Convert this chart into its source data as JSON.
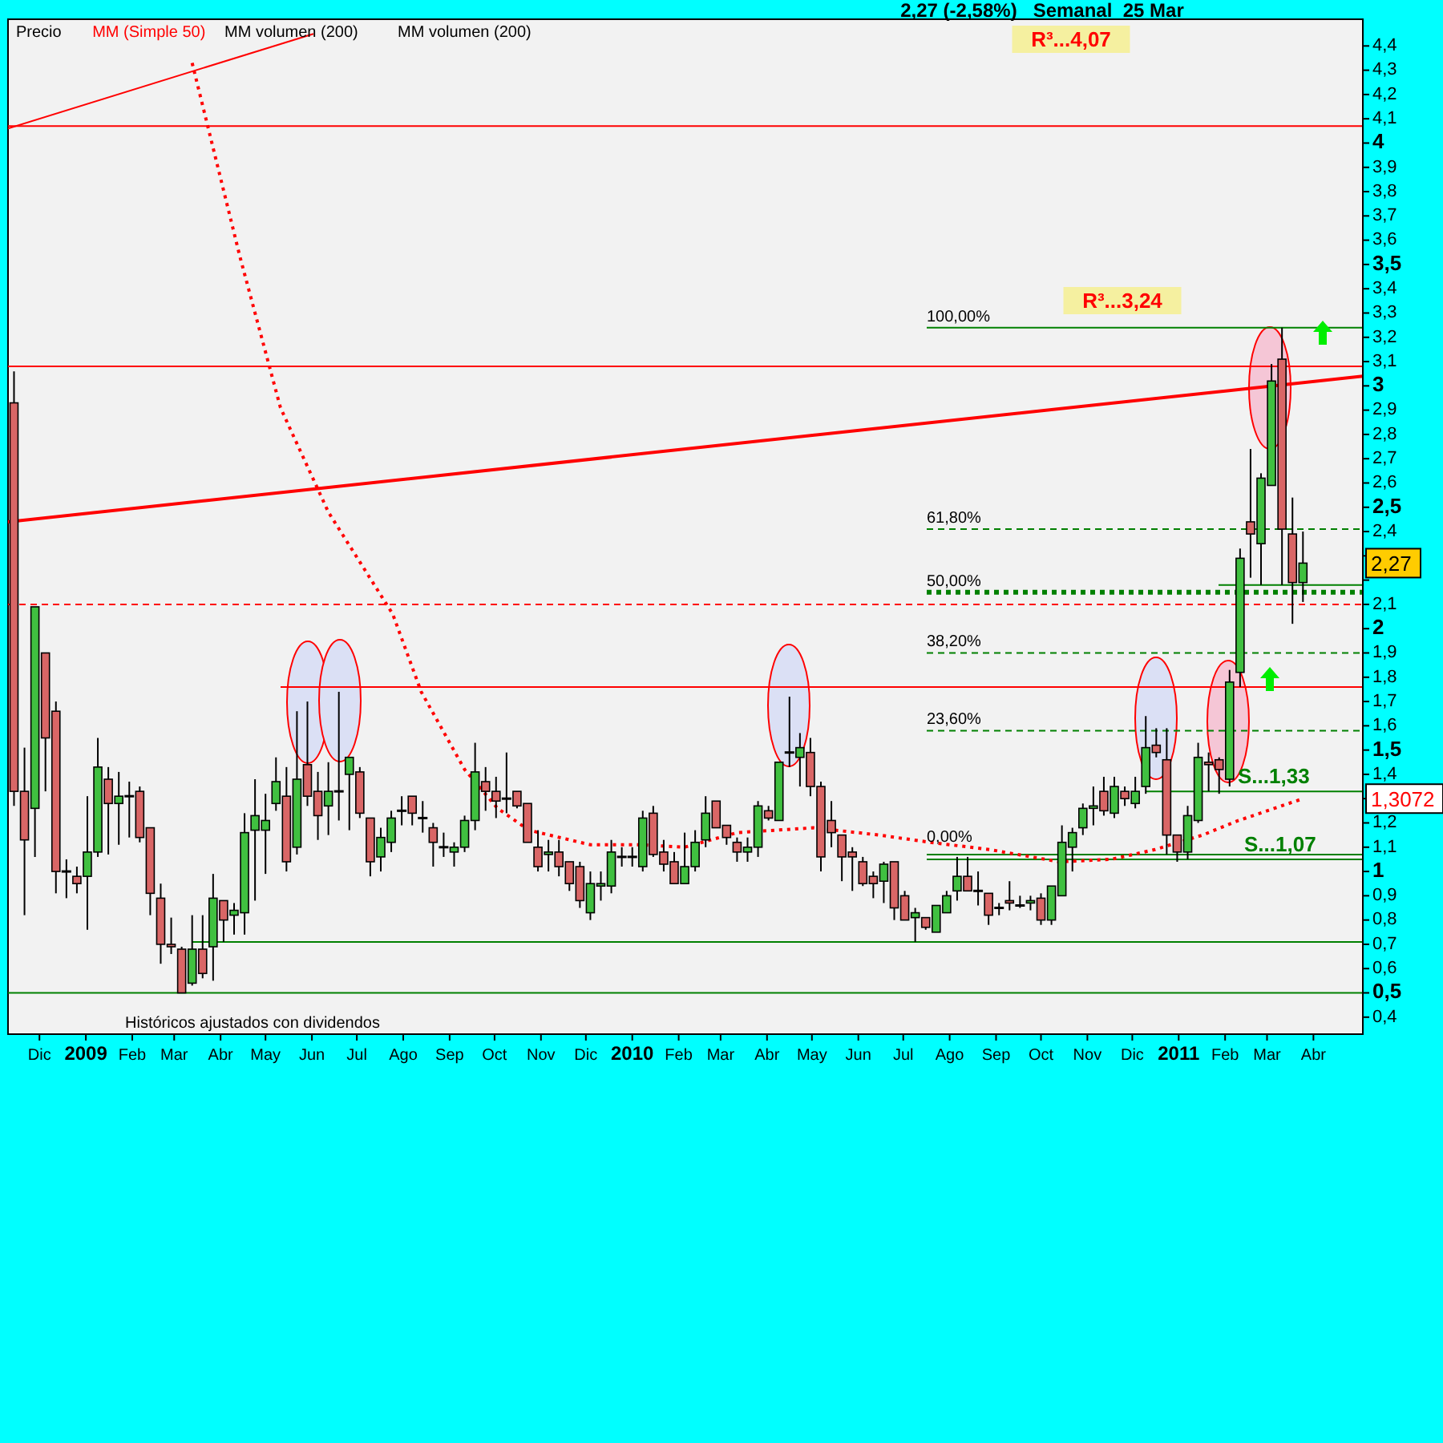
{
  "chart_data": {
    "type": "candlestick",
    "title": "2,27 (-2,58%)   Semanal  25 Mar",
    "xlim": [
      "2008-11-10",
      "2011-05-04"
    ],
    "ylim": [
      0.33,
      4.51
    ],
    "xticks": [
      {
        "value": "2008-12-01",
        "label": "Dic"
      },
      {
        "value": "2009-01-01",
        "label": "2009"
      },
      {
        "value": "2009-02-01",
        "label": "Feb"
      },
      {
        "value": "2009-03-01",
        "label": "Mar"
      },
      {
        "value": "2009-04-01",
        "label": "Abr"
      },
      {
        "value": "2009-05-01",
        "label": "May"
      },
      {
        "value": "2009-06-01",
        "label": "Jun"
      },
      {
        "value": "2009-07-01",
        "label": "Jul"
      },
      {
        "value": "2009-08-01",
        "label": "Ago"
      },
      {
        "value": "2009-09-01",
        "label": "Sep"
      },
      {
        "value": "2009-10-01",
        "label": "Oct"
      },
      {
        "value": "2009-11-01",
        "label": "Nov"
      },
      {
        "value": "2009-12-01",
        "label": "Dic"
      },
      {
        "value": "2010-01-01",
        "label": "2010"
      },
      {
        "value": "2010-02-01",
        "label": "Feb"
      },
      {
        "value": "2010-03-01",
        "label": "Mar"
      },
      {
        "value": "2010-04-01",
        "label": "Abr"
      },
      {
        "value": "2010-05-01",
        "label": "May"
      },
      {
        "value": "2010-06-01",
        "label": "Jun"
      },
      {
        "value": "2010-07-01",
        "label": "Jul"
      },
      {
        "value": "2010-08-01",
        "label": "Ago"
      },
      {
        "value": "2010-09-01",
        "label": "Sep"
      },
      {
        "value": "2010-10-01",
        "label": "Oct"
      },
      {
        "value": "2010-11-01",
        "label": "Nov"
      },
      {
        "value": "2010-12-01",
        "label": "Dic"
      },
      {
        "value": "2011-01-01",
        "label": "2011"
      },
      {
        "value": "2011-02-01",
        "label": "Feb"
      },
      {
        "value": "2011-03-01",
        "label": "Mar"
      },
      {
        "value": "2011-04-01",
        "label": "Abr"
      }
    ],
    "yticks": [
      {
        "value": 0.4,
        "label": "0,4"
      },
      {
        "value": 0.5,
        "label": "0,5"
      },
      {
        "value": 0.6,
        "label": "0,6"
      },
      {
        "value": 0.7,
        "label": "0,7"
      },
      {
        "value": 0.8,
        "label": "0,8"
      },
      {
        "value": 0.9,
        "label": "0,9"
      },
      1,
      {
        "value": 1.1,
        "label": "1,1"
      },
      {
        "value": 1.2,
        "label": "1,2"
      },
      {
        "value": 1.3,
        "label": null
      },
      {
        "value": 1.4,
        "label": "1,4"
      },
      {
        "value": 1.5,
        "label": "1,5"
      },
      {
        "value": 1.6,
        "label": "1,6"
      },
      {
        "value": 1.7,
        "label": "1,7"
      },
      {
        "value": 1.8,
        "label": "1,8"
      },
      {
        "value": 1.9,
        "label": "1,9"
      },
      2,
      {
        "value": 2.1,
        "label": "2,1"
      },
      {
        "value": 2.2,
        "label": null
      },
      {
        "value": 2.3,
        "label": null
      },
      {
        "value": 2.4,
        "label": "2,4"
      },
      {
        "value": 2.5,
        "label": "2,5"
      },
      {
        "value": 2.6,
        "label": "2,6"
      },
      {
        "value": 2.7,
        "label": "2,7"
      },
      {
        "value": 2.8,
        "label": "2,8"
      },
      {
        "value": 2.9,
        "label": "2,9"
      },
      3,
      {
        "value": 3.1,
        "label": "3,1"
      },
      {
        "value": 3.2,
        "label": "3,2"
      },
      {
        "value": 3.3,
        "label": "3,3"
      },
      {
        "value": 3.4,
        "label": "3,4"
      },
      {
        "value": 3.5,
        "label": "3,5"
      },
      {
        "value": 3.6,
        "label": "3,6"
      },
      {
        "value": 3.7,
        "label": "3,7"
      },
      {
        "value": 3.8,
        "label": "3,8"
      },
      {
        "value": 3.9,
        "label": "3,9"
      },
      4,
      {
        "value": 4.1,
        "label": "4,1"
      },
      {
        "value": 4.2,
        "label": "4,2"
      },
      {
        "value": 4.3,
        "label": "4,3"
      },
      {
        "value": 4.4,
        "label": "4,4"
      }
    ],
    "legend": "top left",
    "series": [
      {
        "name": "Precio",
        "colors": [
          "#d96666",
          "#d96666",
          "#40c040",
          "#d96666",
          "#d96666",
          "#000000",
          "#d96666",
          "#40c040",
          "#40c040",
          "#d96666",
          "#40c040",
          "#000000",
          "#d96666",
          "#d96666",
          "#d96666",
          "#d96666",
          "#d96666",
          "#40c040",
          "#d96666",
          "#40c040",
          "#d96666",
          "#40c040",
          "#40c040",
          "#40c040",
          "#40c040",
          "#40c040",
          "#d96666",
          "#40c040",
          "#d96666",
          "#d96666",
          "#40c040",
          "#000000",
          "#40c040",
          "#d96666",
          "#d96666",
          "#40c040",
          "#40c040",
          "#000000",
          "#d96666",
          "#000000",
          "#d96666",
          "#000000",
          "#40c040",
          "#40c040",
          "#40c040",
          "#d96666",
          "#d96666",
          "#000000",
          "#d96666",
          "#d96666",
          "#d96666",
          "#40c040",
          "#d96666",
          "#d96666",
          "#d96666",
          "#40c040",
          "#40c040",
          "#40c040",
          "#000000",
          "#000000",
          "#40c040",
          "#d96666",
          "#d96666",
          "#d96666",
          "#40c040",
          "#40c040",
          "#40c040",
          "#d96666",
          "#d96666",
          "#d96666",
          "#40c040",
          "#40c040",
          "#d96666",
          "#40c040",
          "#000000",
          "#40c040",
          "#d96666",
          "#d96666",
          "#d96666",
          "#d96666",
          "#d96666",
          "#d96666",
          "#d96666",
          "#40c040",
          "#d96666",
          "#d96666",
          "#40c040",
          "#d96666",
          "#40c040",
          "#40c040",
          "#40c040",
          "#d96666",
          "#000000",
          "#d96666",
          "#000000",
          "#d96666",
          "#000000",
          "#40c040",
          "#d96666",
          "#40c040",
          "#40c040",
          "#40c040",
          "#40c040",
          "#40c040",
          "#d96666",
          "#40c040",
          "#d96666",
          "#40c040",
          "#40c040",
          "#d96666",
          "#d96666",
          "#d96666",
          "#40c040",
          "#40c040",
          "#d96666",
          "#d96666",
          "#40c040",
          "#40c040",
          "#d96666",
          "#40c040",
          "#40c040",
          "#d96666",
          "#d96666",
          "#40c040"
        ],
        "x": [
          "2008-11-14",
          "2008-11-21",
          "2008-11-28",
          "2008-12-05",
          "2008-12-12",
          "2008-12-19",
          "2008-12-26",
          "2009-01-02",
          "2009-01-09",
          "2009-01-16",
          "2009-01-23",
          "2009-01-30",
          "2009-02-06",
          "2009-02-13",
          "2009-02-20",
          "2009-02-27",
          "2009-03-06",
          "2009-03-13",
          "2009-03-20",
          "2009-03-27",
          "2009-04-03",
          "2009-04-10",
          "2009-04-17",
          "2009-04-24",
          "2009-05-01",
          "2009-05-08",
          "2009-05-15",
          "2009-05-22",
          "2009-05-29",
          "2009-06-05",
          "2009-06-12",
          "2009-06-19",
          "2009-06-26",
          "2009-07-03",
          "2009-07-10",
          "2009-07-17",
          "2009-07-24",
          "2009-07-31",
          "2009-08-07",
          "2009-08-14",
          "2009-08-21",
          "2009-08-28",
          "2009-09-04",
          "2009-09-11",
          "2009-09-18",
          "2009-09-25",
          "2009-10-02",
          "2009-10-09",
          "2009-10-16",
          "2009-10-23",
          "2009-10-30",
          "2009-11-06",
          "2009-11-13",
          "2009-11-20",
          "2009-11-27",
          "2009-12-04",
          "2009-12-11",
          "2009-12-18",
          "2009-12-25",
          "2010-01-01",
          "2010-01-08",
          "2010-01-15",
          "2010-01-22",
          "2010-01-29",
          "2010-02-05",
          "2010-02-12",
          "2010-02-19",
          "2010-02-26",
          "2010-03-05",
          "2010-03-12",
          "2010-03-19",
          "2010-03-26",
          "2010-04-02",
          "2010-04-09",
          "2010-04-16",
          "2010-04-23",
          "2010-04-30",
          "2010-05-07",
          "2010-05-14",
          "2010-05-21",
          "2010-05-28",
          "2010-06-04",
          "2010-06-11",
          "2010-06-18",
          "2010-06-25",
          "2010-07-02",
          "2010-07-09",
          "2010-07-16",
          "2010-07-23",
          "2010-07-30",
          "2010-08-06",
          "2010-08-13",
          "2010-08-20",
          "2010-08-27",
          "2010-09-03",
          "2010-09-10",
          "2010-09-17",
          "2010-09-24",
          "2010-10-01",
          "2010-10-08",
          "2010-10-15",
          "2010-10-22",
          "2010-10-29",
          "2010-11-05",
          "2010-11-12",
          "2010-11-19",
          "2010-11-26",
          "2010-12-03",
          "2010-12-10",
          "2010-12-17",
          "2010-12-24",
          "2010-12-31",
          "2011-01-07",
          "2011-01-14",
          "2011-01-21",
          "2011-01-28",
          "2011-02-04",
          "2011-02-11",
          "2011-02-18",
          "2011-02-25",
          "2011-03-04",
          "2011-03-11",
          "2011-03-18",
          "2011-03-25"
        ],
        "ohlc": [
          [
            2.93,
            3.06,
            1.27,
            1.33
          ],
          [
            1.33,
            1.51,
            0.82,
            1.13
          ],
          [
            1.26,
            2.09,
            1.06,
            2.09
          ],
          [
            1.9,
            1.9,
            1.33,
            1.55
          ],
          [
            1.66,
            1.7,
            0.91,
            1.0
          ],
          [
            1.0,
            1.05,
            0.89,
            1.0
          ],
          [
            0.98,
            1.02,
            0.91,
            0.95
          ],
          [
            0.98,
            1.31,
            0.76,
            1.08
          ],
          [
            1.08,
            1.55,
            1.06,
            1.43
          ],
          [
            1.38,
            1.43,
            1.07,
            1.28
          ],
          [
            1.28,
            1.41,
            1.11,
            1.31
          ],
          [
            1.31,
            1.37,
            1.14,
            1.31
          ],
          [
            1.33,
            1.35,
            1.12,
            1.14
          ],
          [
            1.18,
            1.18,
            0.82,
            0.91
          ],
          [
            0.89,
            0.95,
            0.62,
            0.7
          ],
          [
            0.7,
            0.81,
            0.66,
            0.69
          ],
          [
            0.68,
            0.69,
            0.5,
            0.5
          ],
          [
            0.54,
            0.82,
            0.53,
            0.68
          ],
          [
            0.68,
            0.82,
            0.56,
            0.58
          ],
          [
            0.69,
            0.99,
            0.55,
            0.89
          ],
          [
            0.88,
            0.88,
            0.71,
            0.8
          ],
          [
            0.82,
            0.87,
            0.74,
            0.84
          ],
          [
            0.83,
            1.24,
            0.74,
            1.16
          ],
          [
            1.17,
            1.38,
            0.88,
            1.23
          ],
          [
            1.17,
            1.32,
            0.99,
            1.21
          ],
          [
            1.28,
            1.47,
            1.25,
            1.37
          ],
          [
            1.31,
            1.43,
            1.0,
            1.04
          ],
          [
            1.1,
            1.66,
            1.07,
            1.38
          ],
          [
            1.44,
            1.7,
            1.27,
            1.31
          ],
          [
            1.33,
            1.41,
            1.13,
            1.23
          ],
          [
            1.27,
            1.45,
            1.15,
            1.33
          ],
          [
            1.33,
            1.74,
            1.21,
            1.33
          ],
          [
            1.4,
            1.47,
            1.17,
            1.47
          ],
          [
            1.41,
            1.43,
            1.22,
            1.24
          ],
          [
            1.22,
            1.22,
            0.98,
            1.04
          ],
          [
            1.06,
            1.18,
            1.0,
            1.14
          ],
          [
            1.12,
            1.25,
            1.08,
            1.22
          ],
          [
            1.25,
            1.31,
            1.19,
            1.25
          ],
          [
            1.31,
            1.31,
            1.19,
            1.24
          ],
          [
            1.22,
            1.29,
            1.16,
            1.22
          ],
          [
            1.18,
            1.2,
            1.02,
            1.12
          ],
          [
            1.1,
            1.16,
            1.06,
            1.1
          ],
          [
            1.08,
            1.12,
            1.02,
            1.1
          ],
          [
            1.1,
            1.23,
            1.08,
            1.21
          ],
          [
            1.21,
            1.53,
            1.17,
            1.41
          ],
          [
            1.37,
            1.43,
            1.25,
            1.33
          ],
          [
            1.33,
            1.39,
            1.22,
            1.29
          ],
          [
            1.3,
            1.49,
            1.24,
            1.3
          ],
          [
            1.33,
            1.33,
            1.26,
            1.27
          ],
          [
            1.28,
            1.28,
            1.12,
            1.12
          ],
          [
            1.1,
            1.17,
            1.0,
            1.02
          ],
          [
            1.07,
            1.13,
            1.0,
            1.08
          ],
          [
            1.08,
            1.13,
            0.98,
            1.02
          ],
          [
            1.04,
            1.04,
            0.92,
            0.95
          ],
          [
            1.02,
            1.04,
            0.85,
            0.88
          ],
          [
            0.83,
            1.0,
            0.8,
            0.95
          ],
          [
            0.94,
            1.0,
            0.88,
            0.95
          ],
          [
            0.94,
            1.13,
            0.91,
            1.08
          ],
          [
            1.06,
            1.1,
            1.02,
            1.06
          ],
          [
            1.06,
            1.1,
            1.02,
            1.06
          ],
          [
            1.02,
            1.25,
            1.0,
            1.22
          ],
          [
            1.24,
            1.27,
            1.06,
            1.07
          ],
          [
            1.08,
            1.13,
            1.0,
            1.03
          ],
          [
            1.04,
            1.08,
            0.95,
            0.95
          ],
          [
            0.95,
            1.16,
            0.95,
            1.02
          ],
          [
            1.02,
            1.17,
            1.0,
            1.12
          ],
          [
            1.13,
            1.31,
            1.1,
            1.24
          ],
          [
            1.29,
            1.29,
            1.18,
            1.18
          ],
          [
            1.19,
            1.19,
            1.11,
            1.14
          ],
          [
            1.12,
            1.14,
            1.04,
            1.08
          ],
          [
            1.08,
            1.14,
            1.04,
            1.1
          ],
          [
            1.1,
            1.29,
            1.06,
            1.27
          ],
          [
            1.25,
            1.27,
            1.21,
            1.22
          ],
          [
            1.21,
            1.45,
            1.21,
            1.45
          ],
          [
            1.49,
            1.72,
            1.43,
            1.49
          ],
          [
            1.47,
            1.57,
            1.35,
            1.51
          ],
          [
            1.49,
            1.55,
            1.31,
            1.35
          ],
          [
            1.35,
            1.37,
            1.0,
            1.06
          ],
          [
            1.21,
            1.29,
            1.1,
            1.16
          ],
          [
            1.15,
            1.15,
            0.96,
            1.06
          ],
          [
            1.08,
            1.1,
            0.92,
            1.06
          ],
          [
            1.04,
            1.06,
            0.94,
            0.95
          ],
          [
            0.98,
            1.0,
            0.89,
            0.95
          ],
          [
            0.96,
            1.04,
            0.87,
            1.03
          ],
          [
            1.04,
            1.04,
            0.8,
            0.85
          ],
          [
            0.9,
            0.92,
            0.8,
            0.8
          ],
          [
            0.81,
            0.85,
            0.71,
            0.83
          ],
          [
            0.81,
            0.81,
            0.76,
            0.77
          ],
          [
            0.75,
            0.86,
            0.75,
            0.86
          ],
          [
            0.83,
            0.92,
            0.83,
            0.9
          ],
          [
            0.92,
            1.06,
            0.88,
            0.98
          ],
          [
            0.98,
            1.06,
            0.92,
            0.92
          ],
          [
            0.92,
            1.0,
            0.86,
            0.92
          ],
          [
            0.91,
            0.91,
            0.78,
            0.82
          ],
          [
            0.85,
            0.87,
            0.82,
            0.85
          ],
          [
            0.88,
            0.96,
            0.84,
            0.87
          ],
          [
            0.86,
            0.9,
            0.85,
            0.86
          ],
          [
            0.87,
            0.9,
            0.84,
            0.88
          ],
          [
            0.89,
            0.91,
            0.78,
            0.8
          ],
          [
            0.8,
            0.94,
            0.78,
            0.94
          ],
          [
            0.9,
            1.19,
            0.9,
            1.12
          ],
          [
            1.1,
            1.18,
            1.0,
            1.16
          ],
          [
            1.18,
            1.28,
            1.15,
            1.26
          ],
          [
            1.26,
            1.35,
            1.19,
            1.27
          ],
          [
            1.33,
            1.39,
            1.23,
            1.25
          ],
          [
            1.24,
            1.39,
            1.22,
            1.35
          ],
          [
            1.33,
            1.35,
            1.27,
            1.3
          ],
          [
            1.28,
            1.39,
            1.26,
            1.33
          ],
          [
            1.35,
            1.64,
            1.32,
            1.51
          ],
          [
            1.52,
            1.59,
            1.47,
            1.49
          ],
          [
            1.46,
            1.59,
            1.07,
            1.15
          ],
          [
            1.15,
            1.15,
            1.04,
            1.08
          ],
          [
            1.08,
            1.27,
            1.05,
            1.23
          ],
          [
            1.21,
            1.53,
            1.2,
            1.47
          ],
          [
            1.45,
            1.49,
            1.33,
            1.44
          ],
          [
            1.46,
            1.47,
            1.32,
            1.42
          ],
          [
            1.38,
            1.83,
            1.35,
            1.78
          ],
          [
            1.82,
            2.33,
            1.76,
            2.29
          ],
          [
            2.44,
            2.74,
            2.21,
            2.39
          ],
          [
            2.35,
            2.64,
            2.18,
            2.62
          ],
          [
            2.59,
            3.09,
            2.59,
            3.02
          ],
          [
            3.11,
            3.24,
            2.18,
            2.41
          ],
          [
            2.39,
            2.54,
            2.02,
            2.19
          ],
          [
            2.19,
            2.4,
            2.11,
            2.27
          ]
        ]
      },
      {
        "name": "MM (Simple 50)",
        "type": "line",
        "color": "#ff0000",
        "line_style": "dotted",
        "x": [
          "2009-03-13",
          "2009-04-14",
          "2009-05-11",
          "2009-06-12",
          "2009-07-25",
          "2009-08-13",
          "2009-09-11",
          "2009-10-03",
          "2009-10-24",
          "2009-12-04",
          "2010-01-07",
          "2010-02-05",
          "2010-03-12",
          "2010-05-02",
          "2010-06-15",
          "2010-07-19",
          "2010-08-28",
          "2010-10-13",
          "2010-11-17",
          "2010-12-16",
          "2011-01-17",
          "2011-02-10",
          "2011-03-25"
        ],
        "values": [
          4.33,
          3.53,
          2.91,
          2.48,
          2.06,
          1.74,
          1.42,
          1.26,
          1.17,
          1.11,
          1.11,
          1.1,
          1.16,
          1.18,
          1.15,
          1.12,
          1.09,
          1.04,
          1.05,
          1.09,
          1.15,
          1.21,
          1.3
        ]
      },
      {
        "type": "line",
        "color": "#ff0000",
        "line_style": "solid",
        "x": [
          "2008-11-10",
          "2009-06-02"
        ],
        "values": [
          4.06,
          4.45
        ]
      },
      {
        "type": "line",
        "color": "#ff0000",
        "line_style": "solid",
        "x": [
          "2008-11-10",
          "2011-05-04"
        ],
        "values": [
          2.44,
          3.04
        ]
      }
    ],
    "ref_lines": [
      {
        "axis": "y",
        "value": 4.07,
        "color": "#ff0000",
        "line_style": "solid"
      },
      {
        "axis": "y",
        "value": 3.08,
        "color": "#ff0000",
        "line_style": "solid"
      },
      {
        "axis": "y",
        "value": 3.24,
        "color": "#008000",
        "line_style": "solid"
      },
      {
        "axis": "y",
        "value": 2.41,
        "color": "#008000",
        "line_style": "dashed"
      },
      {
        "axis": "y",
        "value": 2.15,
        "color": "#008000",
        "line_style": "dotted"
      },
      {
        "axis": "y",
        "value": 2.1,
        "color": "#ff0000",
        "line_style": "dashed"
      },
      {
        "axis": "y",
        "value": 1.9,
        "color": "#008000",
        "line_style": "dashed"
      },
      {
        "axis": "y",
        "value": 1.76,
        "color": "#ff0000",
        "line_style": "solid"
      },
      {
        "axis": "y",
        "value": 1.58,
        "color": "#008000",
        "line_style": "dashed"
      },
      {
        "axis": "y",
        "value": 1.33,
        "label": "S...1,33",
        "color": "#008000",
        "line_style": "solid"
      },
      {
        "axis": "y",
        "value": 1.07,
        "color": "#008000",
        "line_style": "solid"
      },
      {
        "axis": "y",
        "value": 1.05,
        "label": "S...1,07",
        "color": "#008000",
        "line_style": "solid"
      },
      {
        "axis": "y",
        "value": 2.18,
        "color": "#008000",
        "line_style": "solid"
      },
      {
        "axis": "y",
        "value": 0.71,
        "color": "#008000",
        "line_style": "solid"
      },
      {
        "axis": "y",
        "value": 0.5,
        "color": "#008000",
        "line_style": "solid"
      }
    ],
    "annotations": [
      "2,27",
      "1,3072",
      "R³...4,07",
      "R³...3,24",
      "100,00%",
      "61,80%",
      "50,00%",
      "38,20%",
      "23,60%",
      "0,00%",
      "MM volumen (200)",
      "MM volumen (200)",
      "Históricos ajustados con dividendos"
    ]
  }
}
